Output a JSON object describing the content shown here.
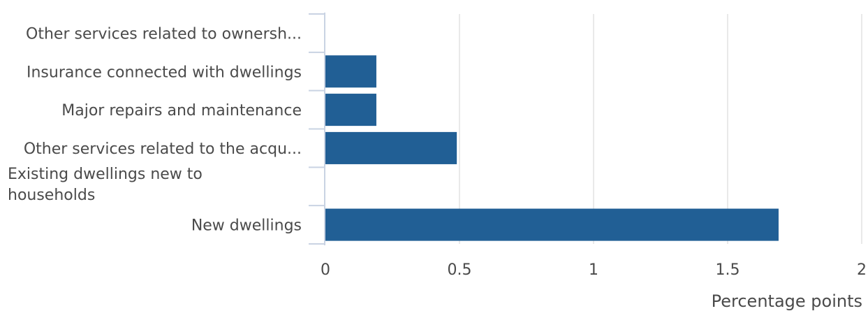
{
  "chart_data": {
    "type": "bar",
    "orientation": "horizontal",
    "categories": [
      "Other services related to ownersh...",
      "Insurance connected with dwellings",
      "Major repairs and maintenance",
      "Other services related to the acqu...",
      "Existing dwellings new to households",
      "New dwellings"
    ],
    "values": [
      0,
      0.19,
      0.19,
      0.49,
      0,
      1.69
    ],
    "xlabel": "Percentage points",
    "ylabel": "",
    "xlim": [
      0,
      2
    ],
    "xticks": [
      0,
      0.5,
      1,
      1.5,
      2
    ],
    "xtick_labels": [
      "0",
      "0.5",
      "1",
      "1.5",
      "2"
    ],
    "grid": true,
    "bar_color": "#215f95"
  }
}
